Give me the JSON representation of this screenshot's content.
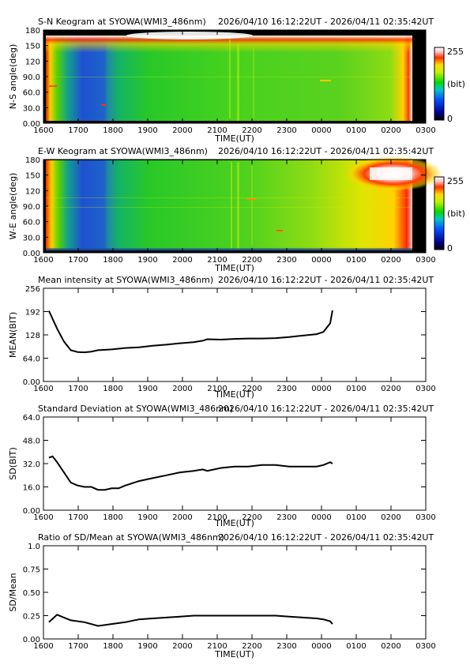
{
  "time_range_label": "2026/04/10 16:12:22UT - 2026/04/11 02:35:42UT",
  "x_axis": {
    "label": "TIME(UT)",
    "ticks": [
      "1600",
      "1700",
      "1800",
      "1900",
      "2000",
      "2100",
      "2200",
      "2300",
      "0000",
      "0100",
      "0200",
      "0300"
    ]
  },
  "colorbar": {
    "max_label": "255",
    "unit_label": "(bit)",
    "min_label": "0"
  },
  "chart_data": [
    {
      "type": "heatmap",
      "title": "S-N Keogram at SYOWA(WMI3_486nm)",
      "ylabel": "N-S angle(deg)",
      "yticks": [
        "0.00",
        "30.0",
        "60.0",
        "90.0",
        "120",
        "150",
        "180"
      ],
      "ylim": [
        0,
        180
      ],
      "colorscale": [
        0,
        255
      ]
    },
    {
      "type": "heatmap",
      "title": "E-W Keogram at SYOWA(WMI3_486nm)",
      "ylabel": "W-E angle(deg)",
      "yticks": [
        "0.00",
        "30.0",
        "60.0",
        "90.0",
        "120",
        "150",
        "180"
      ],
      "ylim": [
        0,
        180
      ],
      "colorscale": [
        0,
        255
      ]
    },
    {
      "type": "line",
      "title": "Mean intensity at SYOWA(WMI3_486nm)",
      "ylabel": "MEAN(BIT)",
      "yticks": [
        "0.00",
        "64.0",
        "128",
        "192",
        "256"
      ],
      "ylim": [
        0,
        256
      ],
      "x": [
        "1612",
        "1630",
        "1645",
        "1700",
        "1715",
        "1730",
        "1745",
        "1800",
        "1830",
        "1900",
        "1930",
        "2000",
        "2030",
        "2100",
        "2130",
        "2150",
        "2200",
        "2230",
        "2300",
        "2330",
        "0000",
        "0030",
        "0100",
        "0130",
        "0200",
        "0215",
        "0230",
        "0235"
      ],
      "values": [
        194,
        145,
        110,
        86,
        81,
        80,
        82,
        86,
        88,
        92,
        94,
        98,
        101,
        105,
        108,
        112,
        116,
        115,
        117,
        118,
        118,
        119,
        122,
        126,
        130,
        136,
        160,
        195
      ]
    },
    {
      "type": "line",
      "title": "Standard Deviation at SYOWA(WMI3_486nm)",
      "ylabel": "SD(BIT)",
      "yticks": [
        "0.00",
        "16.0",
        "32.0",
        "48.0",
        "64.0"
      ],
      "ylim": [
        0,
        64
      ],
      "x": [
        "1612",
        "1620",
        "1630",
        "1645",
        "1700",
        "1715",
        "1730",
        "1745",
        "1800",
        "1815",
        "1830",
        "1845",
        "1900",
        "1930",
        "2000",
        "2030",
        "2100",
        "2130",
        "2150",
        "2200",
        "2230",
        "2300",
        "2330",
        "0000",
        "0030",
        "0100",
        "0130",
        "0200",
        "0215",
        "0230",
        "0235"
      ],
      "values": [
        36,
        37,
        33,
        26,
        19,
        17,
        16,
        16,
        14,
        14,
        15,
        15,
        17,
        20,
        22,
        24,
        26,
        27,
        28,
        27,
        29,
        30,
        30,
        31,
        31,
        30,
        30,
        30,
        31,
        33,
        32
      ]
    },
    {
      "type": "line",
      "title": "Ratio of SD/Mean at SYOWA(WMI3_486nm)",
      "ylabel": "SD/Mean",
      "yticks": [
        "0.00",
        "0.25",
        "0.50",
        "0.75",
        "1.0"
      ],
      "ylim": [
        0,
        1
      ],
      "x": [
        "1612",
        "1630",
        "1645",
        "1700",
        "1730",
        "1800",
        "1830",
        "1900",
        "1930",
        "2000",
        "2030",
        "2100",
        "2130",
        "2200",
        "2230",
        "2300",
        "2330",
        "0000",
        "0030",
        "0100",
        "0130",
        "0200",
        "0215",
        "0230",
        "0235"
      ],
      "values": [
        0.18,
        0.26,
        0.23,
        0.2,
        0.18,
        0.14,
        0.16,
        0.18,
        0.21,
        0.22,
        0.23,
        0.24,
        0.25,
        0.25,
        0.25,
        0.25,
        0.25,
        0.25,
        0.25,
        0.24,
        0.23,
        0.22,
        0.21,
        0.19,
        0.16
      ]
    }
  ]
}
